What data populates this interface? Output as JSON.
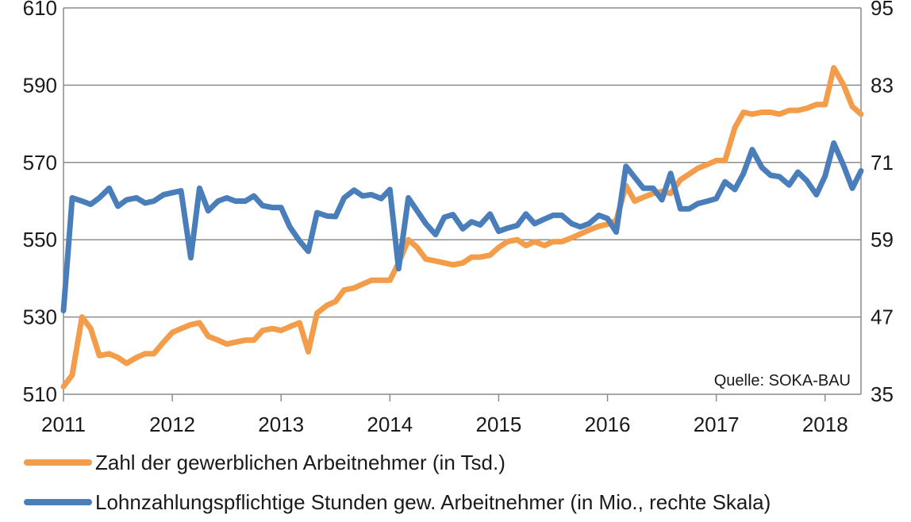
{
  "chart_data": {
    "type": "line",
    "source_note": "Quelle: SOKA-BAU",
    "x_ticks": [
      "2011",
      "2012",
      "2013",
      "2014",
      "2015",
      "2016",
      "2017",
      "2018"
    ],
    "x_range": [
      2011.0,
      2018.33
    ],
    "y_left": {
      "ticks": [
        "510",
        "530",
        "550",
        "570",
        "590",
        "610"
      ],
      "range": [
        510,
        610
      ]
    },
    "y_right": {
      "ticks": [
        "35",
        "47",
        "59",
        "71",
        "83",
        "95"
      ],
      "range": [
        35,
        95
      ]
    },
    "grid": "horizontal",
    "legend_position": "bottom",
    "series": [
      {
        "name": "Zahl der gewerblichen Arbeitnehmer (in Tsd.)",
        "axis": "left",
        "color": "#f39c4a",
        "x": [
          2011.0,
          2011.08,
          2011.17,
          2011.25,
          2011.33,
          2011.42,
          2011.5,
          2011.58,
          2011.67,
          2011.75,
          2011.83,
          2011.92,
          2012.0,
          2012.08,
          2012.17,
          2012.25,
          2012.33,
          2012.42,
          2012.5,
          2012.58,
          2012.67,
          2012.75,
          2012.83,
          2012.92,
          2013.0,
          2013.08,
          2013.17,
          2013.25,
          2013.33,
          2013.42,
          2013.5,
          2013.58,
          2013.67,
          2013.75,
          2013.83,
          2013.92,
          2014.0,
          2014.08,
          2014.17,
          2014.25,
          2014.33,
          2014.42,
          2014.5,
          2014.58,
          2014.67,
          2014.75,
          2014.83,
          2014.92,
          2015.0,
          2015.08,
          2015.17,
          2015.25,
          2015.33,
          2015.42,
          2015.5,
          2015.58,
          2015.67,
          2015.75,
          2015.83,
          2015.92,
          2016.0,
          2016.08,
          2016.17,
          2016.25,
          2016.33,
          2016.42,
          2016.5,
          2016.58,
          2016.67,
          2016.75,
          2016.83,
          2016.92,
          2017.0,
          2017.08,
          2017.17,
          2017.25,
          2017.33,
          2017.42,
          2017.5,
          2017.58,
          2017.67,
          2017.75,
          2017.83,
          2017.92,
          2018.0,
          2018.08,
          2018.17,
          2018.25,
          2018.33
        ],
        "values": [
          512,
          515,
          530,
          527,
          520,
          520.5,
          519.5,
          518,
          519.5,
          520.5,
          520.5,
          523.5,
          526,
          527,
          528,
          528.5,
          525,
          524,
          523,
          523.5,
          524,
          524,
          526.5,
          527,
          526.5,
          527.5,
          528.5,
          521,
          531,
          533,
          534,
          537,
          537.5,
          538.5,
          539.5,
          539.5,
          539.5,
          544,
          550,
          548,
          545,
          544.5,
          544,
          543.5,
          544,
          545.5,
          545.5,
          546,
          548,
          549.5,
          550,
          548.5,
          549.5,
          548.5,
          549.5,
          549.5,
          550.5,
          551.5,
          552.5,
          553.5,
          554,
          555,
          564,
          560,
          561,
          562,
          562.5,
          562,
          565.5,
          567,
          568.5,
          569.5,
          570.5,
          570.5,
          579,
          583,
          582.5,
          583,
          583,
          582.5,
          583.5,
          583.5,
          584,
          585,
          585,
          594.5,
          590,
          584.5,
          582.5
        ]
      },
      {
        "name": "Lohnzahlungspflichtige Stunden gew. Arbeitnehmer (in Mio.,  rechte Skala)",
        "axis": "right",
        "color": "#4a7ebb",
        "x": [
          2011.0,
          2011.08,
          2011.17,
          2011.25,
          2011.33,
          2011.42,
          2011.5,
          2011.58,
          2011.67,
          2011.75,
          2011.83,
          2011.92,
          2012.0,
          2012.08,
          2012.17,
          2012.25,
          2012.33,
          2012.42,
          2012.5,
          2012.58,
          2012.67,
          2012.75,
          2012.83,
          2012.92,
          2013.0,
          2013.08,
          2013.17,
          2013.25,
          2013.33,
          2013.42,
          2013.5,
          2013.58,
          2013.67,
          2013.75,
          2013.83,
          2013.92,
          2014.0,
          2014.08,
          2014.17,
          2014.25,
          2014.33,
          2014.42,
          2014.5,
          2014.58,
          2014.67,
          2014.75,
          2014.83,
          2014.92,
          2015.0,
          2015.08,
          2015.17,
          2015.25,
          2015.33,
          2015.42,
          2015.5,
          2015.58,
          2015.67,
          2015.75,
          2015.83,
          2015.92,
          2016.0,
          2016.08,
          2016.17,
          2016.25,
          2016.33,
          2016.42,
          2016.5,
          2016.58,
          2016.67,
          2016.75,
          2016.83,
          2016.92,
          2017.0,
          2017.08,
          2017.17,
          2017.25,
          2017.33,
          2017.42,
          2017.5,
          2017.58,
          2017.67,
          2017.75,
          2017.83,
          2017.92,
          2018.0,
          2018.08,
          2018.17,
          2018.25,
          2018.33
        ],
        "values": [
          48,
          65.5,
          65,
          64.5,
          65.5,
          67,
          64.2,
          65.2,
          65.5,
          64.7,
          65,
          66,
          66.3,
          66.6,
          56.2,
          67,
          63.5,
          65,
          65.5,
          65,
          65,
          65.8,
          64.3,
          64,
          64,
          61,
          58.8,
          57.2,
          63.2,
          62.7,
          62.6,
          65.5,
          66.7,
          65.8,
          66,
          65.4,
          66.8,
          54.5,
          65.5,
          63.5,
          61.5,
          59.8,
          62.5,
          62.9,
          60.7,
          61.8,
          61.3,
          63,
          60.3,
          60.8,
          61.2,
          63,
          61.5,
          62.2,
          62.8,
          62.8,
          61.5,
          61,
          61.5,
          62.8,
          62.3,
          60.2,
          70.4,
          68.7,
          67,
          67,
          65.2,
          69.3,
          63.8,
          63.8,
          64.6,
          65,
          65.4,
          68,
          66.8,
          69.3,
          73,
          70.2,
          69,
          68.8,
          67.5,
          69.5,
          68.2,
          66,
          68.9,
          74,
          70.5,
          67,
          69.7
        ]
      }
    ]
  }
}
